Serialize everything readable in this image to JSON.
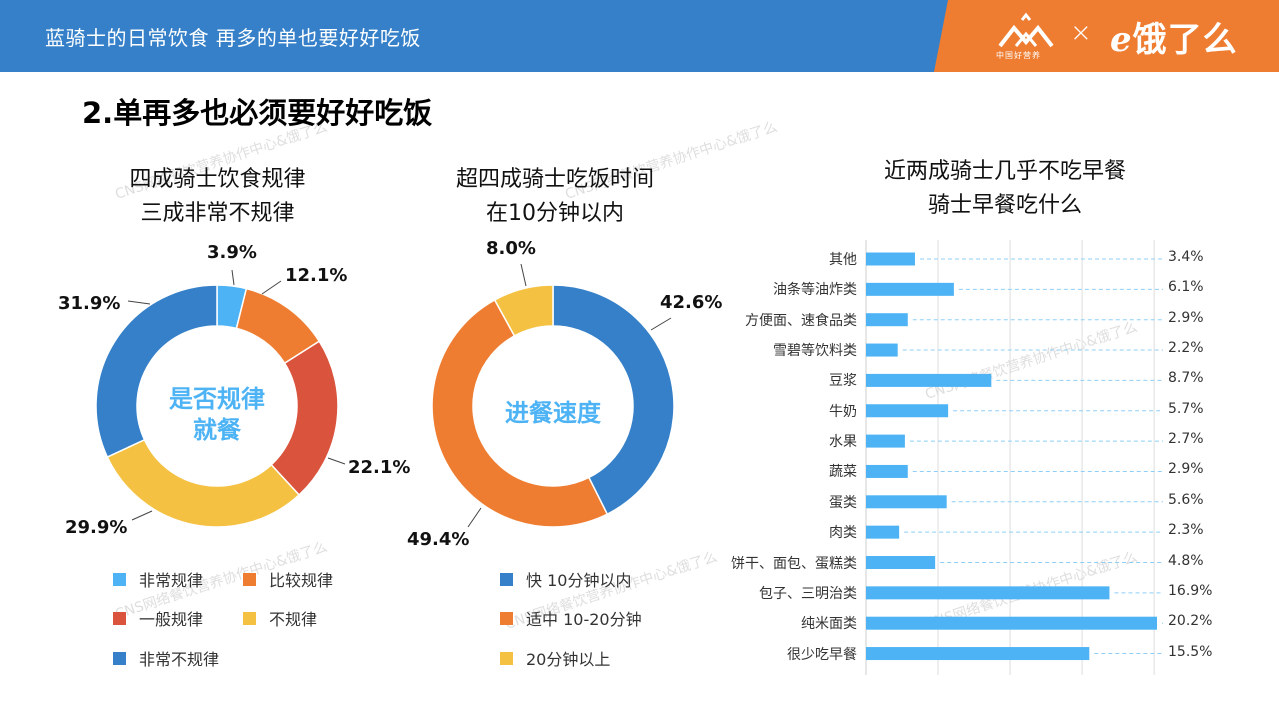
{
  "header": {
    "title": "蓝骑士的日常饮食 再多的单也要好好吃饭",
    "brand_left_sub": "中国好营养",
    "brand_x": "×",
    "brand_right": "饿了么",
    "brand_color": "#ee7d31",
    "header_color": "#3580c8"
  },
  "section_title": "2.单再多也必须要好好吃饭",
  "watermark": "CNS网络餐饮营养协作中心&饿了么",
  "chart_data": [
    {
      "type": "pie",
      "subtype": "donut",
      "title": "四成骑士饮食规律\n三成非常不规律",
      "title_line1": "四成骑士饮食规律",
      "title_line2": "三成非常不规律",
      "center_label_line1": "是否规律",
      "center_label_line2": "就餐",
      "categories": [
        "非常规律",
        "比较规律",
        "一般规律",
        "不规律",
        "非常不规律"
      ],
      "values": [
        3.9,
        12.1,
        22.1,
        29.9,
        31.9
      ],
      "labels": [
        "3.9%",
        "12.1%",
        "22.1%",
        "29.9%",
        "31.9%"
      ],
      "colors": [
        "#4db3f5",
        "#ee7d31",
        "#d9533d",
        "#f4c142",
        "#3580c8"
      ],
      "legend_position": "bottom"
    },
    {
      "type": "pie",
      "subtype": "donut",
      "title": "超四成骑士吃饭时间\n在10分钟以内",
      "title_line1": "超四成骑士吃饭时间",
      "title_line2": "在10分钟以内",
      "center_label_line1": "进餐速度",
      "categories": [
        "快 10分钟以内",
        "适中 10-20分钟",
        "20分钟以上"
      ],
      "values": [
        42.6,
        49.4,
        8.0
      ],
      "labels": [
        "42.6%",
        "49.4%",
        "8.0%"
      ],
      "colors": [
        "#3580c8",
        "#ee7d31",
        "#f4c142"
      ],
      "legend_position": "bottom"
    },
    {
      "type": "bar",
      "orientation": "horizontal",
      "title": "近两成骑士几乎不吃早餐\n骑士早餐吃什么",
      "title_line1": "近两成骑士几乎不吃早餐",
      "title_line2": "骑士早餐吃什么",
      "categories": [
        "其他",
        "油条等油炸类",
        "方便面、速食品类",
        "雪碧等饮料类",
        "豆浆",
        "牛奶",
        "水果",
        "蔬菜",
        "蛋类",
        "肉类",
        "饼干、面包、蛋糕类",
        "包子、三明治类",
        "纯米面类",
        "很少吃早餐"
      ],
      "values": [
        3.4,
        6.1,
        2.9,
        2.2,
        8.7,
        5.7,
        2.7,
        2.9,
        5.6,
        2.3,
        4.8,
        16.9,
        20.2,
        15.5
      ],
      "labels": [
        "3.4%",
        "6.1%",
        "2.9%",
        "2.2%",
        "8.7%",
        "5.7%",
        "2.7%",
        "2.9%",
        "5.6%",
        "2.3%",
        "4.8%",
        "16.9%",
        "20.2%",
        "15.5%"
      ],
      "color": "#4db3f5",
      "xlim": [
        0,
        20
      ],
      "grid": true,
      "xlabel": "",
      "ylabel": ""
    }
  ]
}
